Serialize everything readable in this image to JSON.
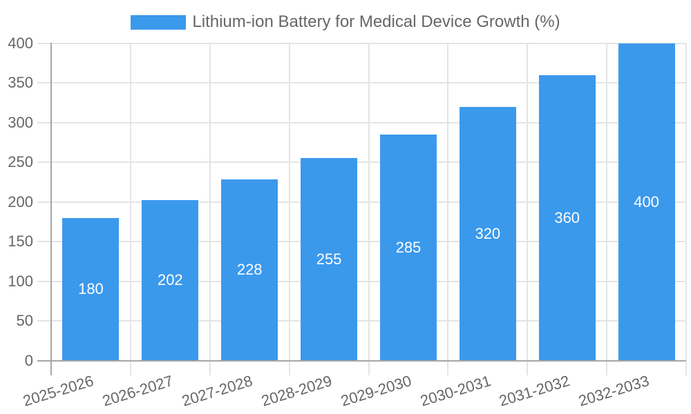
{
  "chart_data": {
    "type": "bar",
    "title": "Lithium-ion Battery for Medical Device Growth (%)",
    "categories": [
      "2025-2026",
      "2026-2027",
      "2027-2028",
      "2028-2029",
      "2029-2030",
      "2030-2031",
      "2031-2032",
      "2032-2033"
    ],
    "values": [
      180,
      202,
      228,
      255,
      285,
      320,
      360,
      400
    ],
    "yticks": [
      0,
      50,
      100,
      150,
      200,
      250,
      300,
      350,
      400
    ],
    "ylim": [
      0,
      400
    ],
    "ytick_step": 50,
    "xlabel": "",
    "ylabel": "",
    "grid": true,
    "value_labels": "inside-center",
    "legend_position": "top-center",
    "x_tick_rotation_deg": -17,
    "colors": {
      "bar": "#3B99EC",
      "value_label": "#FFFFFF",
      "axis_text": "#666666",
      "legend_text": "#666666"
    }
  }
}
